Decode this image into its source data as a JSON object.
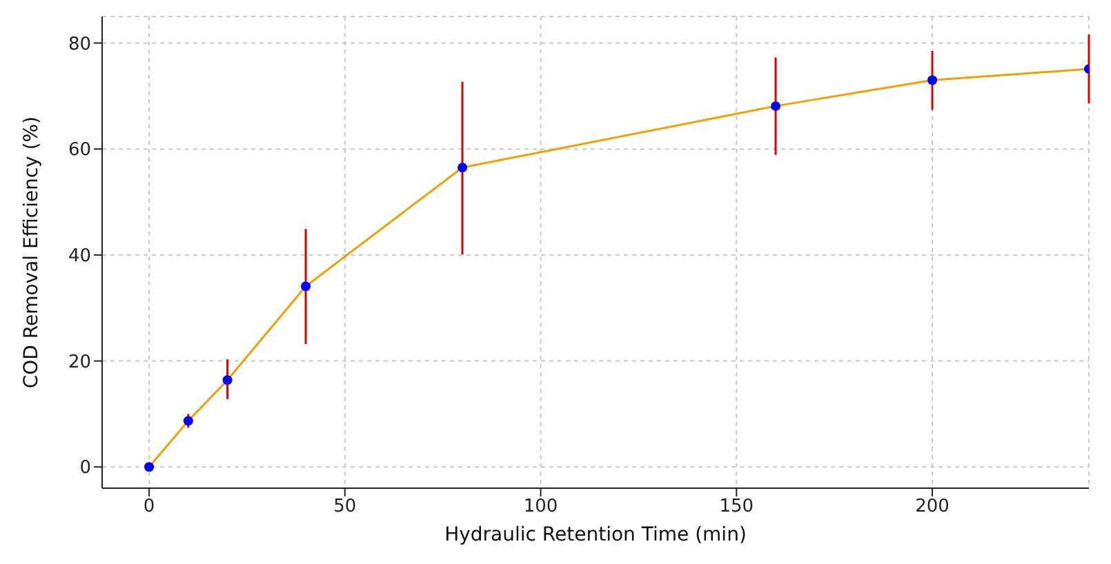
{
  "chart_data": {
    "type": "line",
    "xlabel": "Hydraulic Retention Time (min)",
    "ylabel": "COD Removal Efficiency (%)",
    "x": [
      0,
      10,
      20,
      40,
      80,
      160,
      200,
      240
    ],
    "series": [
      {
        "color": "#f0a000",
        "values": [
          0,
          8.7,
          16.4,
          34.1,
          56.5,
          68.1,
          73,
          75.1
        ],
        "errors": [
          null,
          [
            7.4,
            10
          ],
          [
            12.8,
            20.3
          ],
          [
            23.2,
            44.9
          ],
          [
            40.1,
            72.7
          ],
          [
            58.9,
            77.3
          ],
          [
            67.4,
            78.5
          ],
          [
            68.6,
            81.6
          ]
        ]
      }
    ],
    "xlim": [
      -12,
      240
    ],
    "xticks": [
      0,
      50,
      100,
      150,
      200
    ],
    "ylim": [
      -4,
      85
    ],
    "yticks": [
      0,
      20,
      40,
      60,
      80
    ],
    "grid": true,
    "legend": false,
    "marker": "circle",
    "line_style": "solid"
  }
}
